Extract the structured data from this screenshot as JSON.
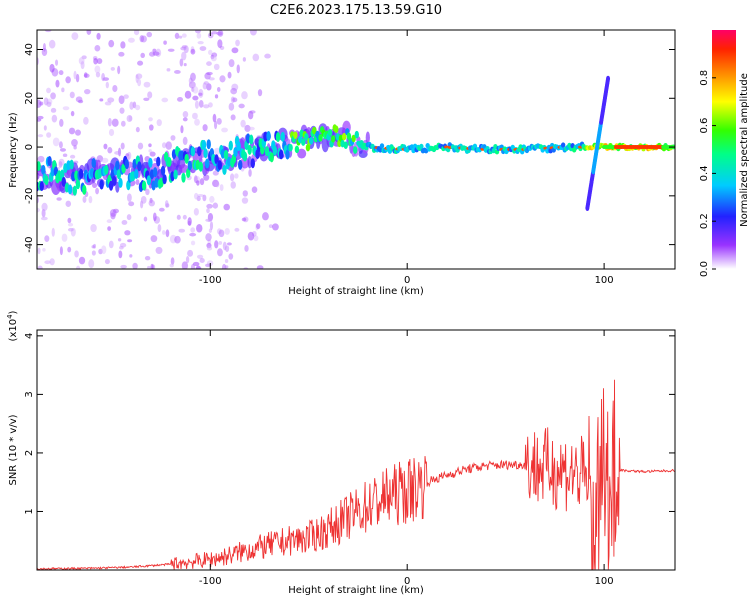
{
  "title": "C2E6.2023.175.13.59.G10",
  "chart_data": [
    {
      "type": "heatmap",
      "xlabel": "Height of straight line (km)",
      "ylabel": "Frequency (Hz)",
      "xlim": [
        -188,
        136
      ],
      "ylim": [
        -50,
        48
      ],
      "xticks": [
        -100,
        0,
        100
      ],
      "yticks": [
        -40,
        -20,
        0,
        20,
        40
      ],
      "ridge": [
        {
          "x": -188,
          "f": -11
        },
        {
          "x": -170,
          "f": -12
        },
        {
          "x": -150,
          "f": -12
        },
        {
          "x": -130,
          "f": -10
        },
        {
          "x": -110,
          "f": -6
        },
        {
          "x": -90,
          "f": -3
        },
        {
          "x": -70,
          "f": 0
        },
        {
          "x": -55,
          "f": 2
        },
        {
          "x": -40,
          "f": 5
        },
        {
          "x": -30,
          "f": 3
        },
        {
          "x": -20,
          "f": 0
        },
        {
          "x": 0,
          "f": -1
        },
        {
          "x": 20,
          "f": 0
        },
        {
          "x": 40,
          "f": -1
        },
        {
          "x": 60,
          "f": -1
        },
        {
          "x": 80,
          "f": 0
        },
        {
          "x": 95,
          "f": 0
        },
        {
          "x": 136,
          "f": 0
        }
      ],
      "colorbar": {
        "label": "Normalized spectral amplitude",
        "range": [
          0,
          1
        ],
        "ticks": [
          "0.0",
          "0.2",
          "0.4",
          "0.6",
          "0.8"
        ],
        "tick_values": [
          0,
          0.2,
          0.4,
          0.6,
          0.8
        ]
      }
    },
    {
      "type": "line",
      "xlabel": "Height of straight line (km)",
      "ylabel": "SNR (10 * v/v)",
      "scale_label": "(x10",
      "scale_exp": "4",
      "scale_close": ")",
      "xlim": [
        -188,
        136
      ],
      "ylim": [
        0,
        4.1
      ],
      "xticks": [
        -100,
        0,
        100
      ],
      "yticks": [
        1,
        2,
        3,
        4
      ],
      "color": "#ee3333",
      "series": [
        {
          "x": [
            -188,
            -160,
            -140,
            -120,
            -100,
            -90,
            -80,
            -70,
            -60,
            -50,
            -40,
            -30,
            -20,
            -10,
            0,
            10,
            20,
            30,
            40,
            50,
            60,
            70,
            80,
            90,
            95,
            100,
            105,
            110,
            120,
            136
          ],
          "values": [
            0.02,
            0.03,
            0.05,
            0.1,
            0.18,
            0.25,
            0.35,
            0.42,
            0.5,
            0.55,
            0.7,
            0.9,
            1.1,
            1.25,
            1.35,
            1.5,
            1.62,
            1.72,
            1.78,
            1.8,
            1.8,
            1.75,
            1.7,
            1.6,
            0.6,
            1.5,
            1.72,
            1.7,
            1.68,
            1.7
          ]
        }
      ]
    }
  ]
}
